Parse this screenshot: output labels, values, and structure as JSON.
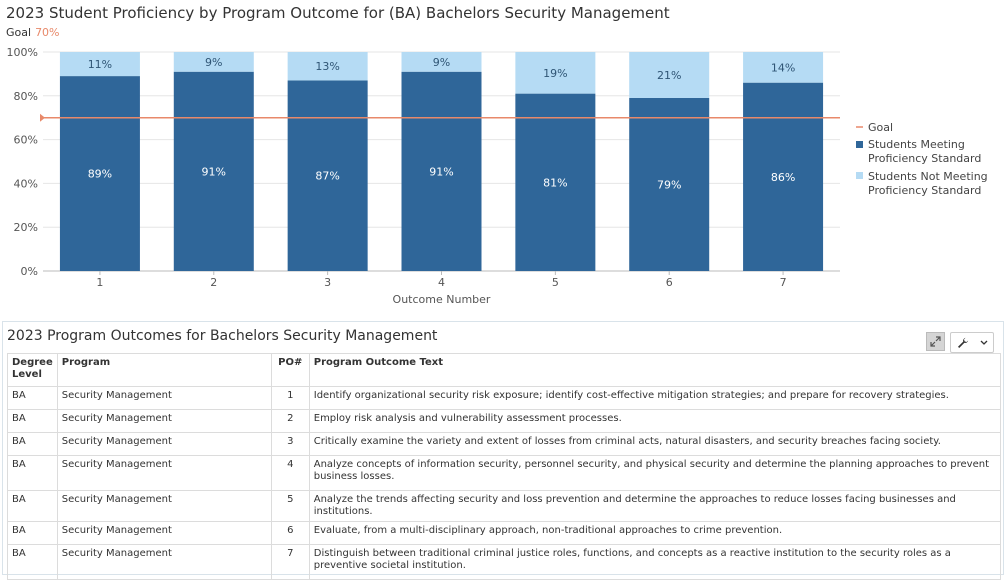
{
  "chart": {
    "title": "2023 Student Proficiency by Program Outcome for (BA) Bachelors Security Management",
    "goal_label": "Goal",
    "goal_value": "70%"
  },
  "chart_data": {
    "type": "bar",
    "stacked": true,
    "categories": [
      "1",
      "2",
      "3",
      "4",
      "5",
      "6",
      "7"
    ],
    "series": [
      {
        "name": "Students Meeting Proficiency Standard",
        "values": [
          89,
          91,
          87,
          91,
          81,
          79,
          86
        ],
        "color": "#2f6699"
      },
      {
        "name": "Students Not Meeting Proficiency Standard",
        "values": [
          11,
          9,
          13,
          9,
          19,
          21,
          14
        ],
        "color": "#b5dbf4"
      }
    ],
    "goal": {
      "name": "Goal",
      "value": 70,
      "color": "#e8896a"
    },
    "data_labels_meet": [
      "89%",
      "91%",
      "87%",
      "91%",
      "81%",
      "79%",
      "86%"
    ],
    "data_labels_not": [
      "11%",
      "9%",
      "13%",
      "9%",
      "19%",
      "21%",
      "14%"
    ],
    "y_ticks": [
      "0%",
      "20%",
      "40%",
      "60%",
      "80%",
      "100%"
    ],
    "ylim": [
      0,
      100
    ],
    "xlabel": "Outcome Number",
    "ylabel": "",
    "legend_items": [
      "Goal",
      "Students Meeting",
      "Proficiency Standard",
      "Students Not Meeting",
      "Proficiency Standard"
    ],
    "legend_position": "right",
    "grid": true
  },
  "table_panel": {
    "title": "2023 Program Outcomes for Bachelors Security Management",
    "headers": {
      "degree_line1": "Degree",
      "degree_line2": "Level",
      "program": "Program",
      "po": "PO#",
      "text": "Program Outcome Text"
    },
    "rows": [
      {
        "degree": "BA",
        "program": "Security Management",
        "po": "1",
        "text": "Identify organizational security risk exposure; identify cost-effective mitigation strategies; and prepare for recovery strategies."
      },
      {
        "degree": "BA",
        "program": "Security Management",
        "po": "2",
        "text": "Employ risk analysis and vulnerability assessment processes."
      },
      {
        "degree": "BA",
        "program": "Security Management",
        "po": "3",
        "text": "Critically examine the variety and extent of losses from criminal acts, natural disasters, and security breaches facing society."
      },
      {
        "degree": "BA",
        "program": "Security Management",
        "po": "4",
        "text": "Analyze concepts of information security, personnel security, and physical security and determine the planning approaches to prevent business losses."
      },
      {
        "degree": "BA",
        "program": "Security Management",
        "po": "5",
        "text": "Analyze the trends affecting security and loss prevention and determine the approaches to reduce losses facing businesses and institutions."
      },
      {
        "degree": "BA",
        "program": "Security Management",
        "po": "6",
        "text": "Evaluate, from a multi-disciplinary approach, non-traditional approaches to crime prevention."
      },
      {
        "degree": "BA",
        "program": "Security Management",
        "po": "7",
        "text": "Distinguish between traditional criminal justice roles, functions, and concepts as a reactive institution to the security roles as a preventive societal institution."
      }
    ]
  },
  "icons": {
    "expand": "expand-icon",
    "wrench": "wrench-icon",
    "chevron": "chevron-down-icon"
  }
}
